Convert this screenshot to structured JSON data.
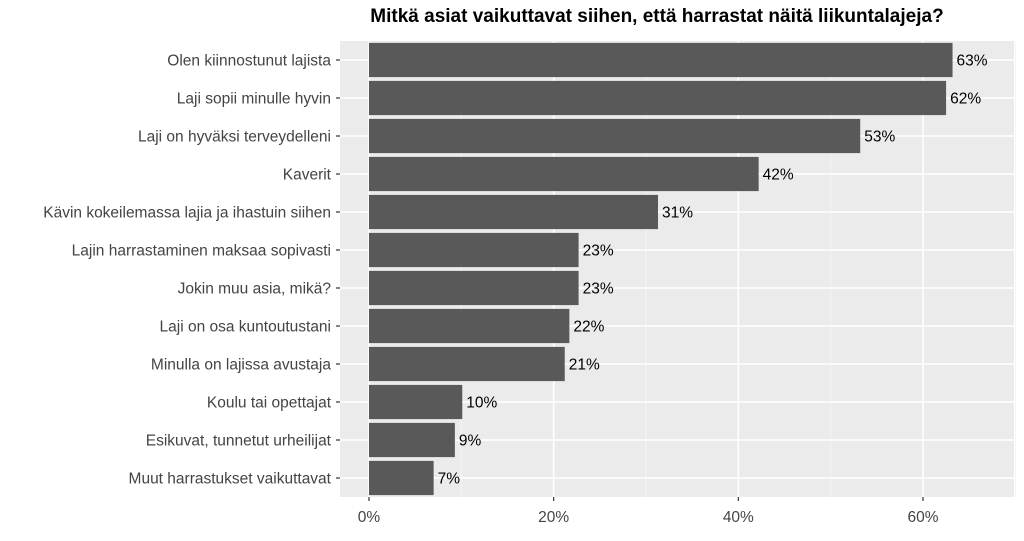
{
  "chart_data": {
    "type": "bar",
    "orientation": "horizontal",
    "title": "Mitkä asiat vaikuttavat siihen, että harrastat näitä liikuntalajeja?",
    "xlabel": "",
    "ylabel": "",
    "xlim": [
      0,
      70
    ],
    "x_ticks": [
      0,
      20,
      40,
      60
    ],
    "x_tick_labels": [
      "0%",
      "20%",
      "40%",
      "60%"
    ],
    "grid": true,
    "legend": "none",
    "categories": [
      "Olen kiinnostunut lajista",
      "Laji sopii minulle hyvin",
      "Laji on hyväksi terveydelleni",
      "Kaverit",
      "Kävin kokeilemassa lajia ja ihastuin siihen",
      "Lajin harrastaminen maksaa sopivasti",
      "Jokin muu asia, mikä?",
      "Laji on osa kuntoutustani",
      "Minulla on lajissa avustaja",
      "Koulu tai opettajat",
      "Esikuvat, tunnetut urheilijat",
      "Muut harrastukset vaikuttavat"
    ],
    "values": [
      63.2,
      62.5,
      53.2,
      42.2,
      31.3,
      22.7,
      22.7,
      21.7,
      21.2,
      10.1,
      9.3,
      7.0
    ],
    "value_labels": [
      "63%",
      "62%",
      "53%",
      "42%",
      "31%",
      "23%",
      "23%",
      "22%",
      "21%",
      "10%",
      "9%",
      "7%"
    ],
    "colors": {
      "bar": "#595959",
      "panel": "#ebebeb",
      "grid_major": "#ffffff",
      "grid_minor": "#f5f5f5"
    }
  }
}
